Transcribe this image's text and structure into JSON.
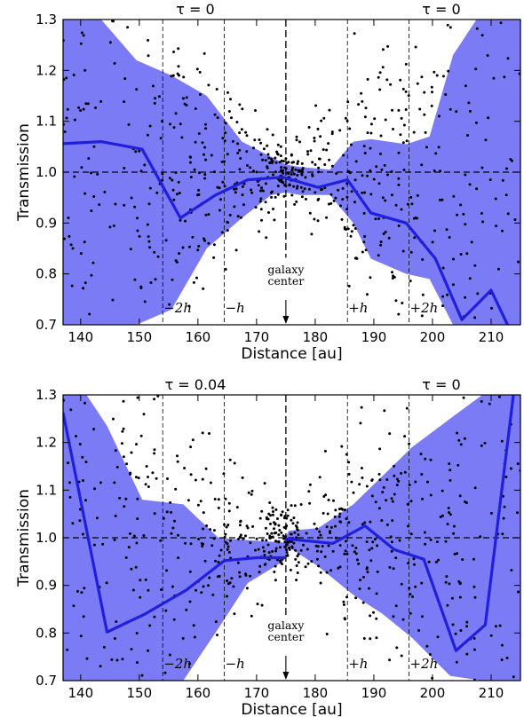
{
  "chart_data": [
    {
      "type": "line",
      "panel": "top",
      "xlabel": "Distance [au]",
      "ylabel": "Transmission",
      "xlim": [
        137,
        215
      ],
      "ylim": [
        0.7,
        1.3
      ],
      "xticks": [
        140,
        150,
        160,
        170,
        180,
        190,
        200,
        210
      ],
      "yticks": [
        0.7,
        0.8,
        0.9,
        1.0,
        1.1,
        1.2,
        1.3
      ],
      "tau_left": "τ = 0",
      "tau_right": "τ = 0",
      "center_x": 175,
      "center_label_1": "galaxy",
      "center_label_2": "center",
      "reference_y": 1.0,
      "h_lines": [
        {
          "x": 154.0,
          "label": "−2h"
        },
        {
          "x": 164.5,
          "label": "−h"
        },
        {
          "x": 185.5,
          "label": "+h"
        },
        {
          "x": 196.0,
          "label": "+2h"
        }
      ],
      "colors": {
        "line": "#1f1fdc",
        "band": "#7b7bf5",
        "points": "#000000"
      },
      "series": [
        {
          "name": "",
          "x": [
            137,
            143.5,
            150.5,
            157,
            163,
            168.5,
            174.5,
            180.5,
            185.5,
            189.5,
            195.5,
            200.5,
            205,
            210,
            213
          ],
          "y": [
            1.056,
            1.06,
            1.045,
            0.91,
            0.955,
            0.985,
            0.99,
            0.97,
            0.985,
            0.92,
            0.9,
            0.83,
            0.71,
            0.768,
            0.695
          ]
        }
      ],
      "band": {
        "x": [
          137,
          143.5,
          149.5,
          155.5,
          161.5,
          167.5,
          172.5,
          175,
          177.5,
          182.5,
          186.5,
          189.5,
          195.5,
          199.5,
          203.5,
          207.5,
          211.5,
          215
        ],
        "upper": [
          1.3,
          1.3,
          1.22,
          1.19,
          1.15,
          1.06,
          1.03,
          1.015,
          1.01,
          1.005,
          1.06,
          1.065,
          1.055,
          1.07,
          1.23,
          1.3,
          1.3,
          1.3
        ],
        "lower": [
          0.7,
          0.7,
          0.7,
          0.73,
          0.85,
          0.91,
          0.955,
          0.96,
          0.955,
          0.955,
          0.9,
          0.83,
          0.8,
          0.79,
          0.7,
          0.7,
          0.7,
          0.7
        ]
      },
      "scatter_seed": 1
    },
    {
      "type": "line",
      "panel": "bottom",
      "xlabel": "Distance [au]",
      "ylabel": "Transmission",
      "xlim": [
        137,
        215
      ],
      "ylim": [
        0.7,
        1.3
      ],
      "xticks": [
        140,
        150,
        160,
        170,
        180,
        190,
        200,
        210
      ],
      "yticks": [
        0.7,
        0.8,
        0.9,
        1.0,
        1.1,
        1.2,
        1.3
      ],
      "tau_left": "τ = 0.04",
      "tau_right": "τ = 0",
      "center_x": 175,
      "center_label_1": "galaxy",
      "center_label_2": "center",
      "reference_y": 1.0,
      "h_lines": [
        {
          "x": 154.0,
          "label": "−2h"
        },
        {
          "x": 164.5,
          "label": "−h"
        },
        {
          "x": 185.5,
          "label": "+h"
        },
        {
          "x": 196.0,
          "label": "+2h"
        }
      ],
      "colors": {
        "line": "#1f1fdc",
        "band": "#7b7bf5",
        "points": "#000000"
      },
      "series": [
        {
          "name": "",
          "x": [
            137,
            144.5,
            151,
            158,
            164.5,
            170,
            175
          ],
          "y": [
            1.263,
            0.802,
            0.84,
            0.89,
            0.952,
            0.958,
            0.958
          ]
        },
        {
          "name": "",
          "x": [
            175,
            183,
            188.5,
            193.5,
            198.5,
            204,
            209,
            213.8
          ],
          "y": [
            0.998,
            0.988,
            1.025,
            0.975,
            0.955,
            0.763,
            0.817,
            1.3
          ]
        }
      ],
      "band": {
        "x": [
          137,
          141,
          144.5,
          150.5,
          157.5,
          163.5,
          168.5,
          174.5,
          175.5,
          180.5,
          186.5,
          191.5,
          196.5,
          203,
          208.5,
          212,
          215
        ],
        "upper": [
          1.3,
          1.3,
          1.235,
          1.08,
          1.07,
          1.0,
          0.995,
          0.99,
          1.015,
          1.02,
          1.07,
          1.13,
          1.19,
          1.25,
          1.3,
          1.3,
          1.3
        ],
        "lower": [
          0.7,
          0.7,
          0.7,
          0.7,
          0.7,
          0.81,
          0.905,
          0.95,
          0.98,
          0.94,
          0.88,
          0.84,
          0.79,
          0.71,
          0.7,
          0.7,
          0.7
        ]
      },
      "scatter_seed": 7
    }
  ]
}
